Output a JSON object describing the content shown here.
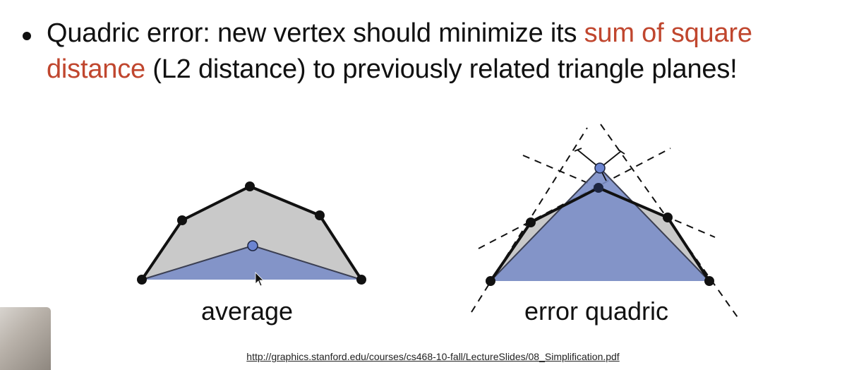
{
  "bullet": {
    "text_before": "Quadric error: new vertex should minimize its ",
    "highlight": "sum of square distance",
    "text_after": " (L2 distance) to previously related triangle planes!"
  },
  "figures": {
    "left_caption": "average",
    "right_caption": "error quadric"
  },
  "source_url": "http://graphics.stanford.edu/courses/cs468-10-fall/LectureSlides/08_Simplification.pdf",
  "colors": {
    "accent": "#c0462e",
    "fill_gray": "#c9c9c9",
    "fill_blue": "#7b8ec8",
    "vertex_blue": "#6b84d1",
    "stroke": "#111111"
  }
}
